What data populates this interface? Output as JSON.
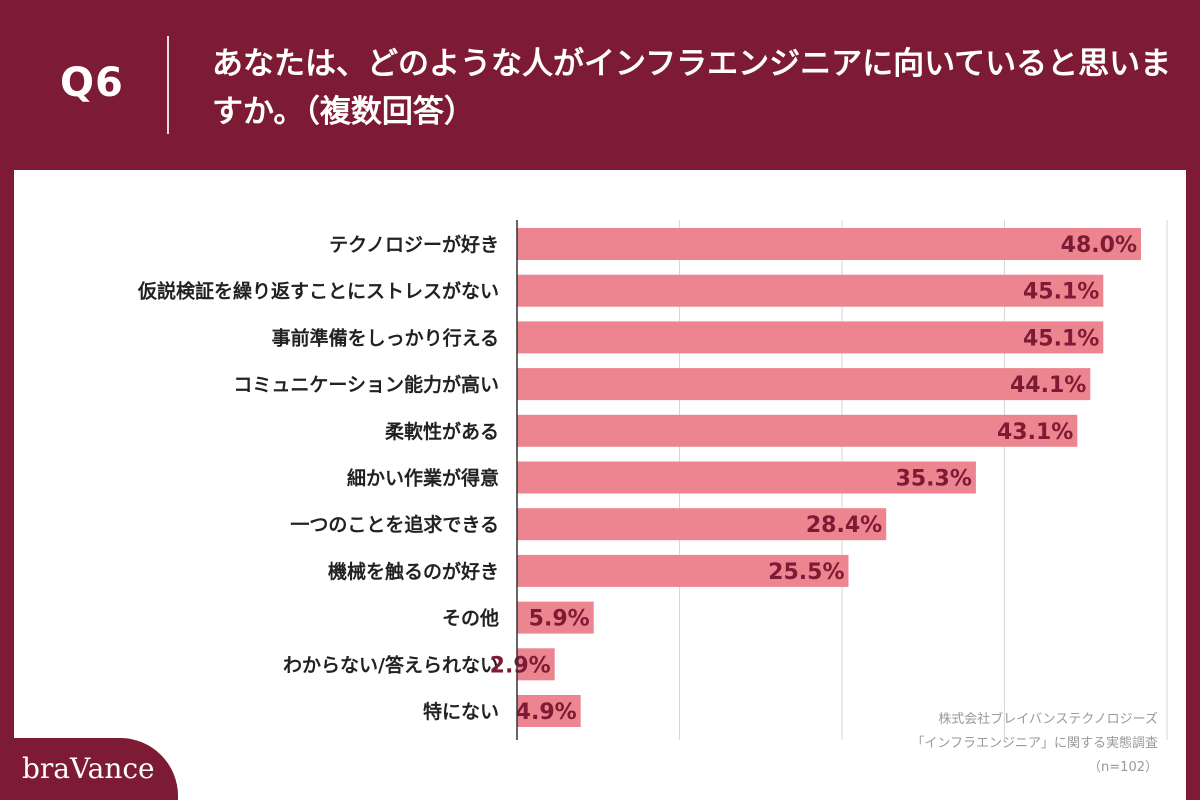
{
  "header": {
    "question_id": "Q6",
    "question_text": "あなたは、どのような人がインフラエンジニアに向いていると思いますか。（複数回答）"
  },
  "brand": {
    "name": "braVance"
  },
  "source": {
    "company": "株式会社ブレイバンステクノロジーズ",
    "survey": "「インフラエンジニア」に関する実態調査",
    "sample": "（n=102）"
  },
  "colors": {
    "background": "#7d1a34",
    "bar": "#ec8590",
    "value_label": "#7d1a34",
    "grid": "#d6d6d6"
  },
  "chart_data": {
    "type": "bar",
    "orientation": "horizontal",
    "categories": [
      "テクノロジーが好き",
      "仮説検証を繰り返すことにストレスがない",
      "事前準備をしっかり行える",
      "コミュニケーション能力が高い",
      "柔軟性がある",
      "細かい作業が得意",
      "一つのことを追求できる",
      "機械を触るのが好き",
      "その他",
      "わからない/答えられない",
      "特にない"
    ],
    "values": [
      48.0,
      45.1,
      45.1,
      44.1,
      43.1,
      35.3,
      28.4,
      25.5,
      5.9,
      2.9,
      4.9
    ],
    "value_labels": [
      "48.0%",
      "45.1%",
      "45.1%",
      "44.1%",
      "43.1%",
      "35.3%",
      "28.4%",
      "25.5%",
      "5.9%",
      "2.9%",
      "4.9%"
    ],
    "xlim": [
      0,
      50
    ],
    "grid": true
  }
}
